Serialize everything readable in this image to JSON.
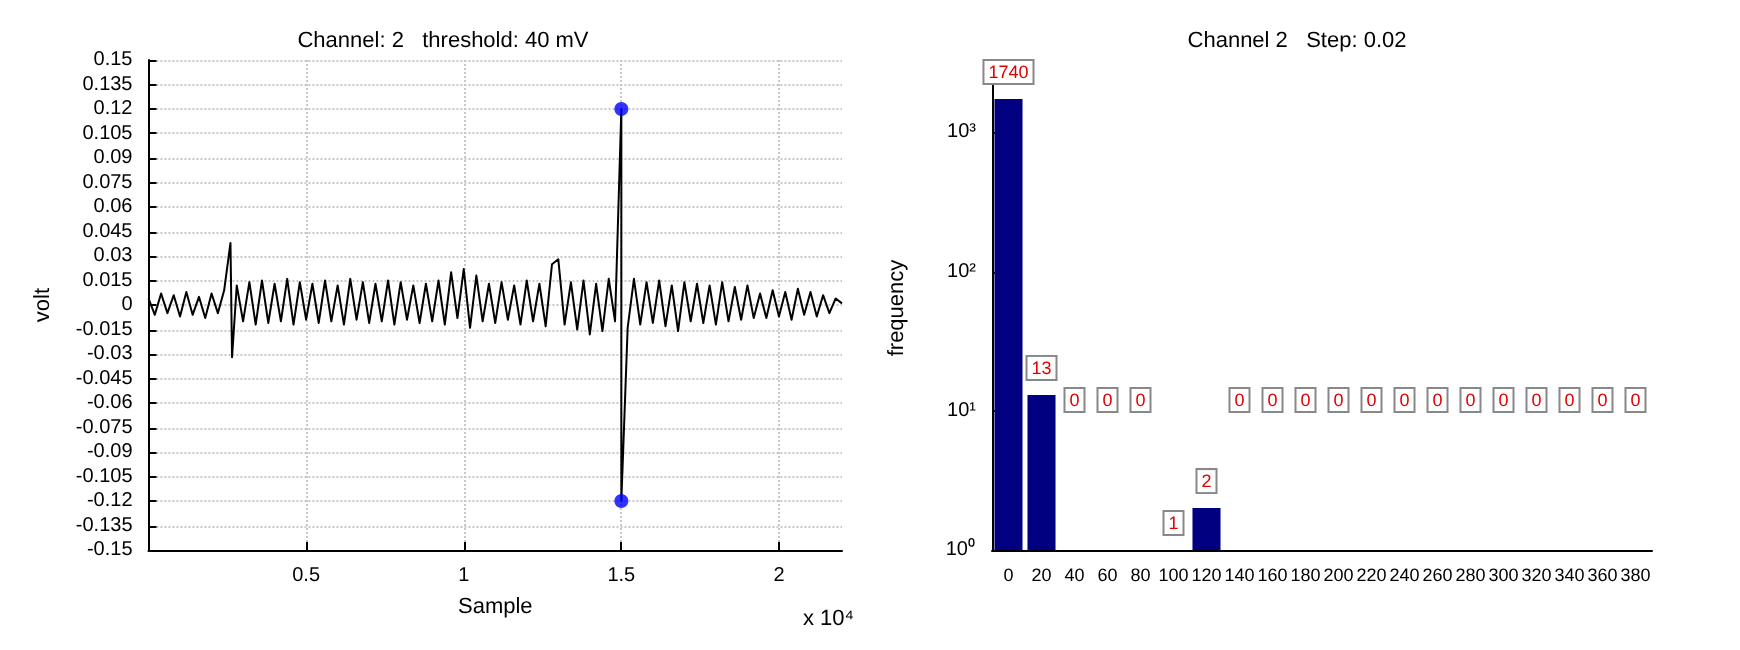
{
  "chart_data": [
    {
      "type": "line",
      "title": "Channel: 2   threshold: 40 mV",
      "xlabel": "Sample",
      "ylabel": "volt",
      "annotations": [
        "x 10⁴"
      ],
      "xlim": [
        0,
        2.2
      ],
      "xticks": [
        0.5,
        1,
        1.5,
        2
      ],
      "ylim": [
        -0.15,
        0.15
      ],
      "yticks": [
        -0.15,
        -0.135,
        -0.12,
        -0.105,
        -0.09,
        -0.075,
        -0.06,
        -0.045,
        -0.03,
        -0.015,
        0,
        0.015,
        0.03,
        0.045,
        0.06,
        0.075,
        0.09,
        0.105,
        0.12,
        0.135,
        0.15
      ],
      "grid": true,
      "marker": "none",
      "series": [
        {
          "type": "line",
          "color": "#000000",
          "x": [
            0,
            0.02,
            0.04,
            0.06,
            0.08,
            0.1,
            0.12,
            0.14,
            0.16,
            0.18,
            0.2,
            0.22,
            0.24,
            0.26,
            0.265,
            0.28,
            0.3,
            0.32,
            0.34,
            0.36,
            0.38,
            0.4,
            0.42,
            0.44,
            0.46,
            0.48,
            0.5,
            0.52,
            0.54,
            0.56,
            0.58,
            0.6,
            0.62,
            0.64,
            0.66,
            0.68,
            0.7,
            0.72,
            0.74,
            0.76,
            0.78,
            0.8,
            0.82,
            0.84,
            0.86,
            0.88,
            0.9,
            0.92,
            0.94,
            0.96,
            0.98,
            1,
            1.02,
            1.04,
            1.06,
            1.08,
            1.1,
            1.12,
            1.14,
            1.16,
            1.18,
            1.2,
            1.22,
            1.24,
            1.26,
            1.28,
            1.3,
            1.32,
            1.34,
            1.36,
            1.38,
            1.4,
            1.42,
            1.44,
            1.46,
            1.48,
            1.5,
            1.5,
            1.52,
            1.54,
            1.56,
            1.58,
            1.6,
            1.62,
            1.64,
            1.66,
            1.68,
            1.7,
            1.72,
            1.74,
            1.76,
            1.78,
            1.8,
            1.82,
            1.84,
            1.86,
            1.88,
            1.9,
            1.92,
            1.94,
            1.96,
            1.98,
            2,
            2.02,
            2.04,
            2.06,
            2.08,
            2.1,
            2.12,
            2.14,
            2.16,
            2.18,
            2.2
          ],
          "values": [
            0.004,
            -0.006,
            0.007,
            -0.005,
            0.006,
            -0.007,
            0.008,
            -0.006,
            0.005,
            -0.008,
            0.007,
            -0.005,
            0.009,
            0.038,
            -0.032,
            0.012,
            -0.01,
            0.014,
            -0.012,
            0.015,
            -0.011,
            0.013,
            -0.01,
            0.016,
            -0.012,
            0.014,
            -0.009,
            0.013,
            -0.011,
            0.015,
            -0.01,
            0.012,
            -0.012,
            0.016,
            -0.009,
            0.014,
            -0.011,
            0.013,
            -0.01,
            0.015,
            -0.012,
            0.014,
            -0.009,
            0.012,
            -0.011,
            0.013,
            -0.01,
            0.015,
            -0.012,
            0.02,
            -0.008,
            0.022,
            -0.014,
            0.018,
            -0.01,
            0.013,
            -0.011,
            0.014,
            -0.009,
            0.012,
            -0.012,
            0.015,
            -0.01,
            0.013,
            -0.013,
            0.025,
            0.028,
            -0.012,
            0.014,
            -0.015,
            0.015,
            -0.018,
            0.013,
            -0.016,
            0.016,
            -0.01,
            0.12,
            -0.12,
            -0.014,
            0.016,
            -0.012,
            0.014,
            -0.011,
            0.015,
            -0.013,
            0.012,
            -0.016,
            0.014,
            -0.01,
            0.013,
            -0.011,
            0.012,
            -0.012,
            0.014,
            -0.01,
            0.011,
            -0.009,
            0.012,
            -0.008,
            0.007,
            -0.008,
            0.009,
            -0.007,
            0.008,
            -0.009,
            0.01,
            -0.006,
            0.008,
            -0.007,
            0.006,
            -0.005,
            0.004,
            0.001
          ]
        },
        {
          "type": "scatter",
          "color": "#0000ff",
          "marker": "circle",
          "x": [
            1.5,
            1.5
          ],
          "values": [
            0.12,
            -0.12
          ]
        }
      ]
    },
    {
      "type": "bar",
      "title": "Channel 2   Step: 0.02",
      "ylabel": "frequency",
      "log": "y",
      "categories": [
        "0",
        "20",
        "40",
        "60",
        "80",
        "100",
        "120",
        "140",
        "160",
        "180",
        "200",
        "220",
        "240",
        "260",
        "280",
        "300",
        "320",
        "340",
        "360",
        "380"
      ],
      "values": [
        1740,
        13,
        null,
        null,
        null,
        1,
        2,
        null,
        null,
        null,
        null,
        null,
        null,
        null,
        null,
        null,
        null,
        null,
        null,
        null
      ],
      "value_labels": [
        "1740",
        "13",
        "0",
        "0",
        "0",
        "1",
        "2",
        "0",
        "0",
        "0",
        "0",
        "0",
        "0",
        "0",
        "0",
        "0",
        "0",
        "0",
        "0",
        "0"
      ],
      "color": "#000080",
      "ylim": [
        1,
        3000
      ],
      "yticks": [
        {
          "value": 1,
          "label": "10⁰"
        },
        {
          "value": 10,
          "label": "10¹"
        },
        {
          "value": 100,
          "label": "10²"
        },
        {
          "value": 1000,
          "label": "10³"
        }
      ],
      "grid": false
    }
  ]
}
